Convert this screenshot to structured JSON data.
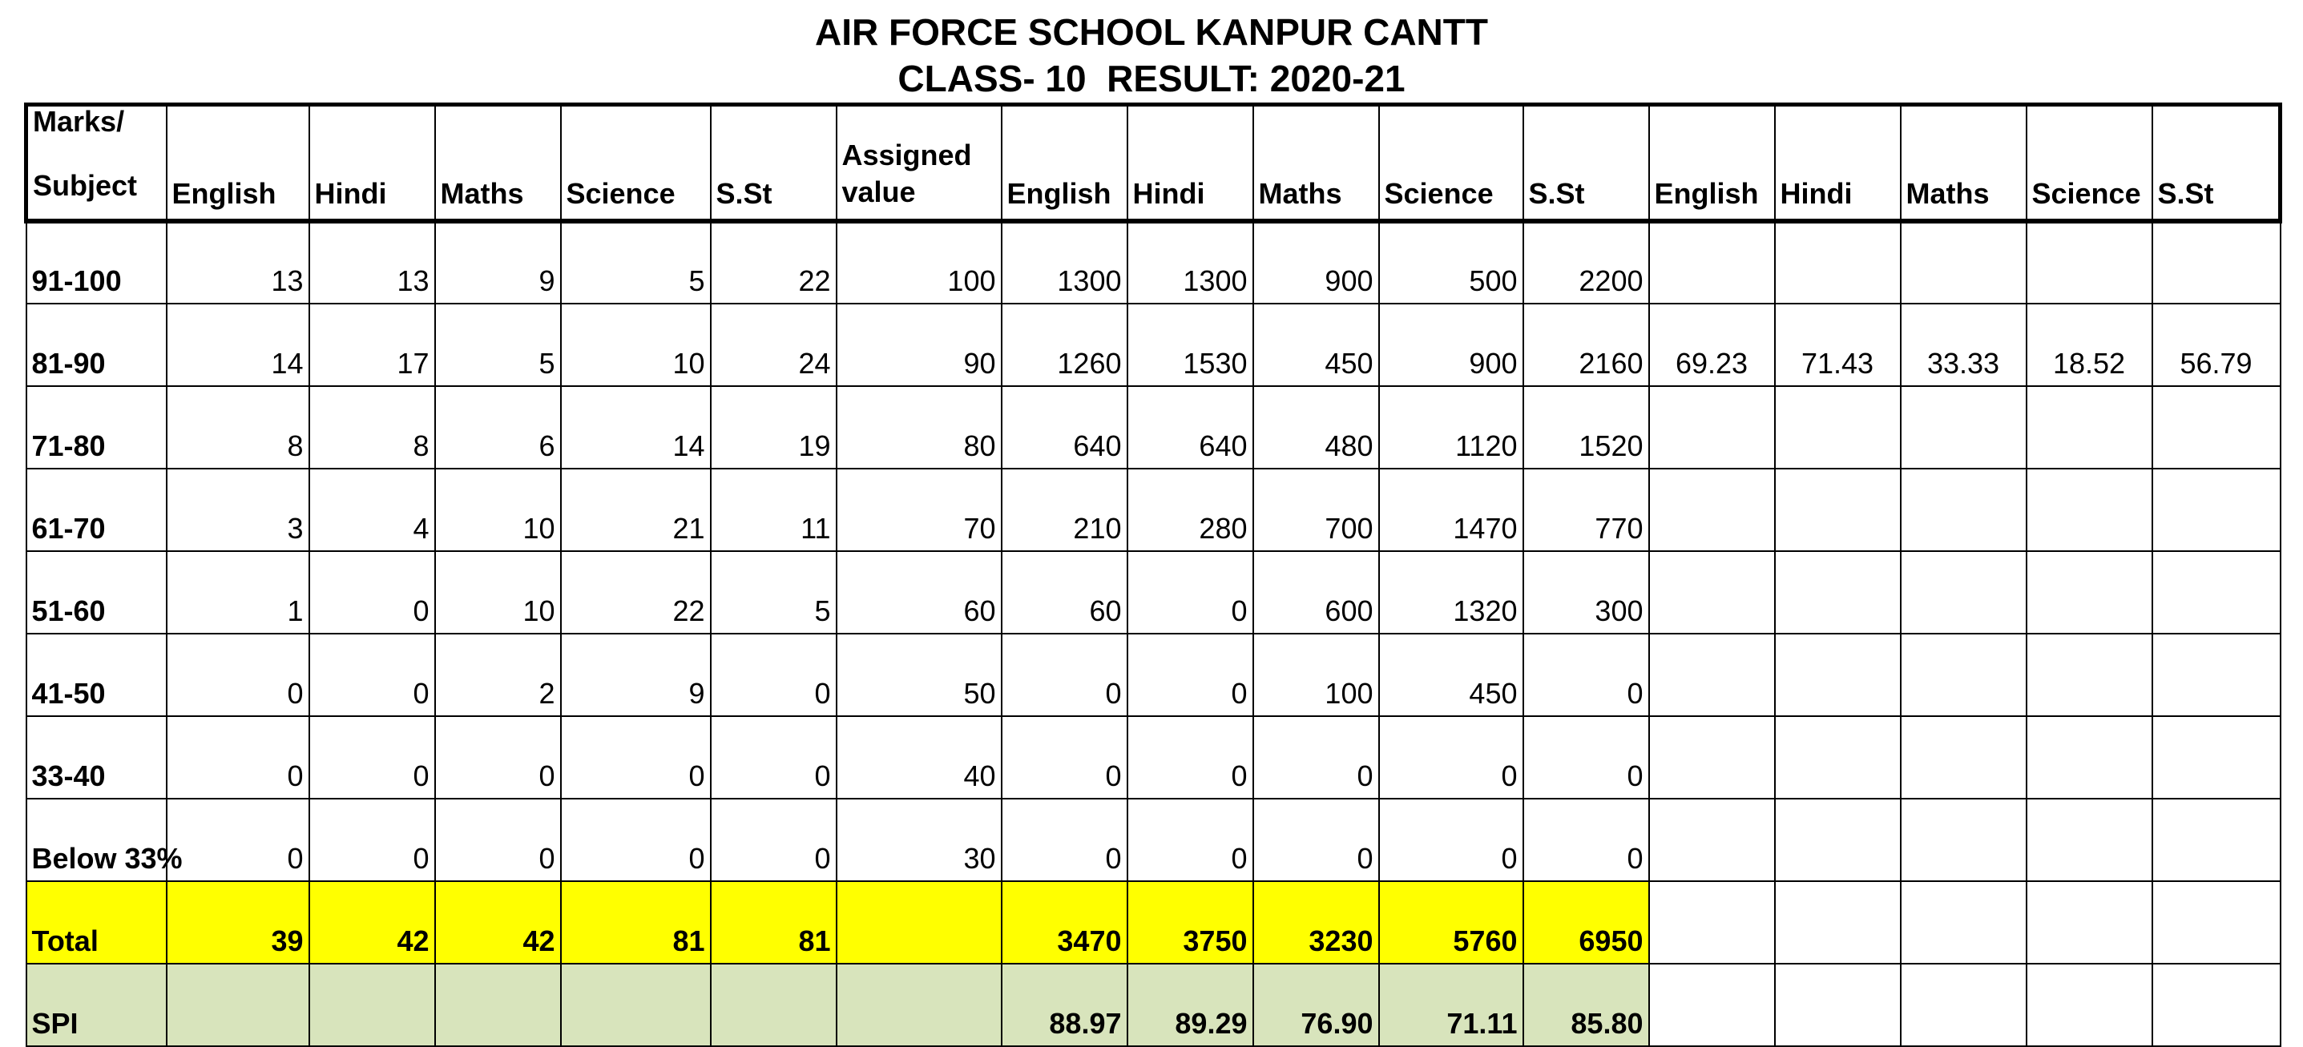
{
  "title": "AIR FORCE SCHOOL KANPUR CANTT",
  "subtitle": "CLASS- 10  RESULT: 2020-21",
  "header": {
    "first_line1": "Marks/",
    "first_line2": "Subject",
    "columns": [
      "English",
      "Hindi",
      "Maths",
      "Science",
      "S.St",
      "Assigned value",
      "English",
      "Hindi",
      "Maths",
      "Science",
      "S.St",
      "English",
      "Hindi",
      "Maths",
      "Science",
      "S.St"
    ]
  },
  "rows": [
    {
      "label": "91-100",
      "counts": [
        "13",
        "13",
        "9",
        "5",
        "22"
      ],
      "assigned": "100",
      "products": [
        "1300",
        "1300",
        "900",
        "500",
        "2200"
      ],
      "pct": [
        "",
        "",
        "",
        "",
        ""
      ]
    },
    {
      "label": "81-90",
      "counts": [
        "14",
        "17",
        "5",
        "10",
        "24"
      ],
      "assigned": "90",
      "products": [
        "1260",
        "1530",
        "450",
        "900",
        "2160"
      ],
      "pct": [
        "69.23",
        "71.43",
        "33.33",
        "18.52",
        "56.79"
      ]
    },
    {
      "label": "71-80",
      "counts": [
        "8",
        "8",
        "6",
        "14",
        "19"
      ],
      "assigned": "80",
      "products": [
        "640",
        "640",
        "480",
        "1120",
        "1520"
      ],
      "pct": [
        "",
        "",
        "",
        "",
        ""
      ]
    },
    {
      "label": "61-70",
      "counts": [
        "3",
        "4",
        "10",
        "21",
        "11"
      ],
      "assigned": "70",
      "products": [
        "210",
        "280",
        "700",
        "1470",
        "770"
      ],
      "pct": [
        "",
        "",
        "",
        "",
        ""
      ]
    },
    {
      "label": "51-60",
      "counts": [
        "1",
        "0",
        "10",
        "22",
        "5"
      ],
      "assigned": "60",
      "products": [
        "60",
        "0",
        "600",
        "1320",
        "300"
      ],
      "pct": [
        "",
        "",
        "",
        "",
        ""
      ]
    },
    {
      "label": "41-50",
      "counts": [
        "0",
        "0",
        "2",
        "9",
        "0"
      ],
      "assigned": "50",
      "products": [
        "0",
        "0",
        "100",
        "450",
        "0"
      ],
      "pct": [
        "",
        "",
        "",
        "",
        ""
      ]
    },
    {
      "label": "33-40",
      "counts": [
        "0",
        "0",
        "0",
        "0",
        "0"
      ],
      "assigned": "40",
      "products": [
        "0",
        "0",
        "0",
        "0",
        "0"
      ],
      "pct": [
        "",
        "",
        "",
        "",
        ""
      ]
    },
    {
      "label": "Below 33%",
      "counts": [
        "0",
        "0",
        "0",
        "0",
        "0"
      ],
      "assigned": "30",
      "products": [
        "0",
        "0",
        "0",
        "0",
        "0"
      ],
      "pct": [
        "",
        "",
        "",
        "",
        ""
      ]
    }
  ],
  "total": {
    "label": "Total",
    "counts": [
      "39",
      "42",
      "42",
      "81",
      "81"
    ],
    "assigned": "",
    "products": [
      "3470",
      "3750",
      "3230",
      "5760",
      "6950"
    ]
  },
  "spi": {
    "label": "SPI",
    "values": [
      "88.97",
      "89.29",
      "76.90",
      "71.11",
      "85.80"
    ]
  },
  "colors": {
    "total_highlight": "#ffff00",
    "spi_highlight": "#d8e4bc"
  }
}
